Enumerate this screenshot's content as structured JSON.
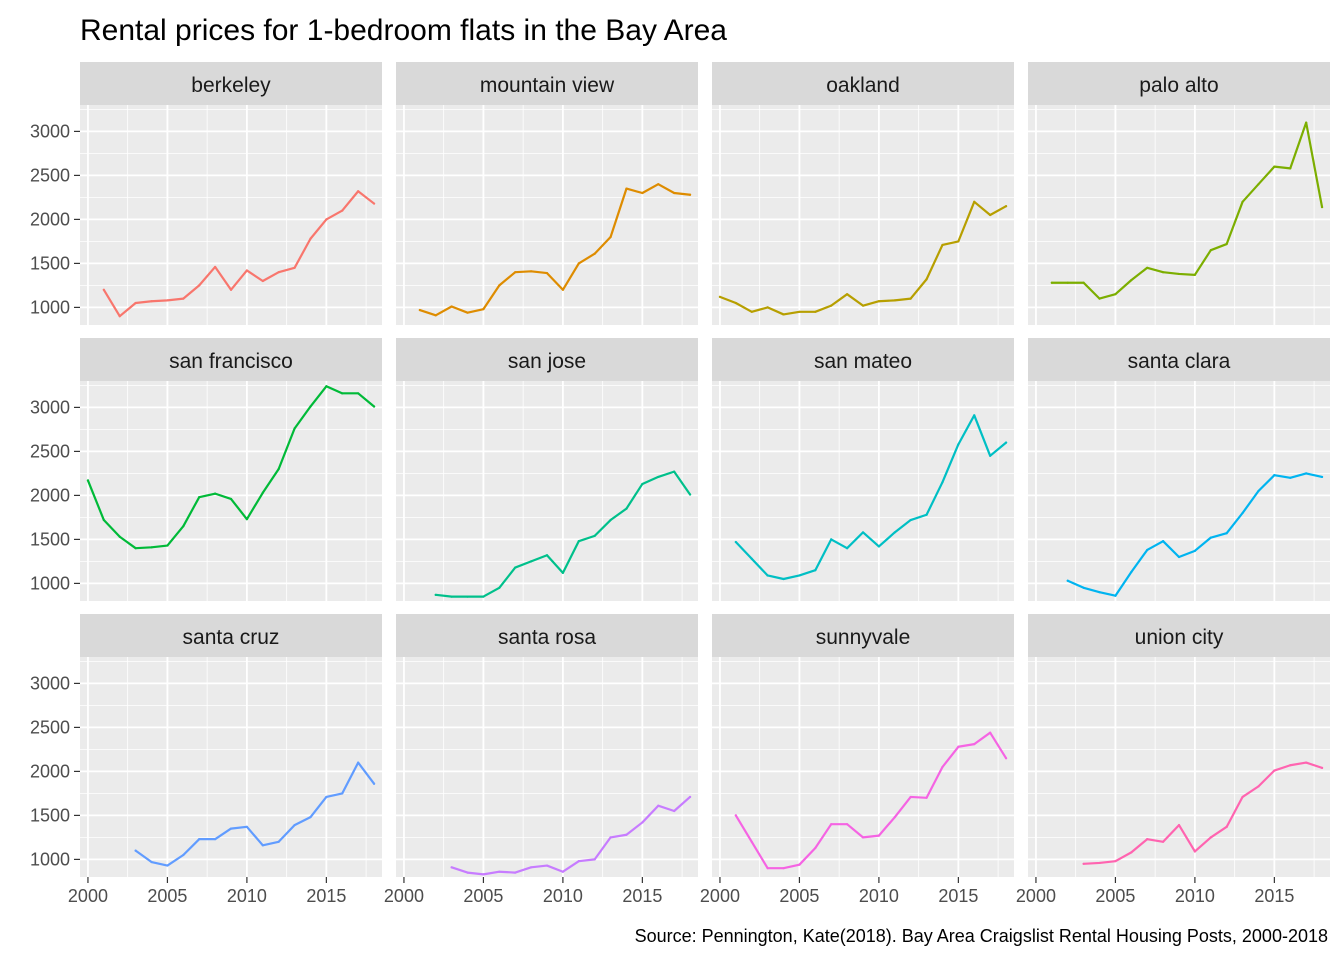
{
  "chart_data": {
    "type": "line",
    "title": "Rental prices for 1-bedroom flats in the Bay Area",
    "caption": "Source: Pennington, Kate(2018). Bay Area Craigslist Rental Housing Posts, 2000-2018",
    "xlabel": "",
    "ylabel": "",
    "xlim": [
      1999.5,
      2018.5
    ],
    "ylim": [
      800,
      3300
    ],
    "x_ticks": [
      2000,
      2005,
      2010,
      2015
    ],
    "y_ticks": [
      1000,
      1500,
      2000,
      2500,
      3000
    ],
    "grid": true,
    "legend": "none",
    "facets": [
      {
        "name": "berkeley",
        "color": "#F8766D",
        "x": [
          2001,
          2002,
          2003,
          2004,
          2005,
          2006,
          2007,
          2008,
          2009,
          2010,
          2011,
          2012,
          2013,
          2014,
          2015,
          2016,
          2017,
          2018
        ],
        "y": [
          1200,
          900,
          1050,
          1070,
          1080,
          1100,
          1250,
          1460,
          1200,
          1420,
          1300,
          1400,
          1450,
          1780,
          2000,
          2100,
          2320,
          2180
        ]
      },
      {
        "name": "mountain view",
        "color": "#DE8C00",
        "x": [
          2001,
          2002,
          2003,
          2004,
          2005,
          2006,
          2007,
          2008,
          2009,
          2010,
          2011,
          2012,
          2013,
          2014,
          2015,
          2016,
          2017,
          2018
        ],
        "y": [
          970,
          910,
          1010,
          940,
          980,
          1250,
          1400,
          1410,
          1390,
          1200,
          1500,
          1610,
          1800,
          2350,
          2300,
          2400,
          2300,
          2280
        ]
      },
      {
        "name": "oakland",
        "color": "#B79F00",
        "x": [
          2000,
          2001,
          2002,
          2003,
          2004,
          2005,
          2006,
          2007,
          2008,
          2009,
          2010,
          2011,
          2012,
          2013,
          2014,
          2015,
          2016,
          2017,
          2018
        ],
        "y": [
          1120,
          1050,
          950,
          1000,
          920,
          950,
          950,
          1020,
          1150,
          1020,
          1070,
          1080,
          1100,
          1320,
          1710,
          1750,
          2200,
          2050,
          2150
        ]
      },
      {
        "name": "palo alto",
        "color": "#7CAE00",
        "x": [
          2001,
          2002,
          2003,
          2004,
          2005,
          2006,
          2007,
          2008,
          2009,
          2010,
          2011,
          2012,
          2013,
          2014,
          2015,
          2016,
          2017,
          2018
        ],
        "y": [
          1280,
          1280,
          1280,
          1100,
          1150,
          1310,
          1450,
          1400,
          1380,
          1370,
          1650,
          1720,
          2200,
          2400,
          2600,
          2580,
          3100,
          2140
        ]
      },
      {
        "name": "san francisco",
        "color": "#00BA38",
        "x": [
          2000,
          2001,
          2002,
          2003,
          2004,
          2005,
          2006,
          2007,
          2008,
          2009,
          2010,
          2011,
          2012,
          2013,
          2014,
          2015,
          2016,
          2017,
          2018
        ],
        "y": [
          2170,
          1720,
          1530,
          1400,
          1410,
          1430,
          1650,
          1980,
          2020,
          1960,
          1730,
          2030,
          2300,
          2760,
          3010,
          3240,
          3160,
          3160,
          3010
        ]
      },
      {
        "name": "san jose",
        "color": "#00C08B",
        "x": [
          2002,
          2003,
          2004,
          2005,
          2006,
          2007,
          2008,
          2009,
          2010,
          2011,
          2012,
          2013,
          2014,
          2015,
          2016,
          2017,
          2018
        ],
        "y": [
          870,
          850,
          850,
          850,
          950,
          1180,
          1250,
          1320,
          1120,
          1480,
          1540,
          1720,
          1850,
          2130,
          2210,
          2270,
          2010
        ]
      },
      {
        "name": "san mateo",
        "color": "#00BFC4",
        "x": [
          2001,
          2002,
          2003,
          2004,
          2005,
          2006,
          2007,
          2008,
          2009,
          2010,
          2011,
          2012,
          2013,
          2014,
          2015,
          2016,
          2017,
          2018
        ],
        "y": [
          1470,
          1280,
          1090,
          1050,
          1090,
          1150,
          1500,
          1400,
          1580,
          1420,
          1580,
          1720,
          1780,
          2150,
          2580,
          2910,
          2450,
          2600
        ]
      },
      {
        "name": "santa clara",
        "color": "#00B4F0",
        "x": [
          2002,
          2003,
          2004,
          2005,
          2006,
          2007,
          2008,
          2009,
          2010,
          2011,
          2012,
          2013,
          2014,
          2015,
          2016,
          2017,
          2018
        ],
        "y": [
          1030,
          950,
          900,
          860,
          1130,
          1380,
          1480,
          1300,
          1370,
          1520,
          1570,
          1800,
          2050,
          2230,
          2200,
          2250,
          2210
        ]
      },
      {
        "name": "santa cruz",
        "color": "#619CFF",
        "x": [
          2003,
          2004,
          2005,
          2006,
          2007,
          2008,
          2009,
          2010,
          2011,
          2012,
          2013,
          2014,
          2015,
          2016,
          2017,
          2018
        ],
        "y": [
          1100,
          970,
          930,
          1050,
          1230,
          1230,
          1350,
          1370,
          1160,
          1200,
          1390,
          1480,
          1710,
          1750,
          2100,
          1860
        ]
      },
      {
        "name": "santa rosa",
        "color": "#C77CFF",
        "x": [
          2003,
          2004,
          2005,
          2006,
          2007,
          2008,
          2009,
          2010,
          2011,
          2012,
          2013,
          2014,
          2015,
          2016,
          2017,
          2018
        ],
        "y": [
          910,
          850,
          830,
          860,
          850,
          910,
          930,
          860,
          980,
          1000,
          1250,
          1280,
          1420,
          1610,
          1550,
          1710
        ]
      },
      {
        "name": "sunnyvale",
        "color": "#F564E3",
        "x": [
          2001,
          2002,
          2003,
          2004,
          2005,
          2006,
          2007,
          2008,
          2009,
          2010,
          2011,
          2012,
          2013,
          2014,
          2015,
          2016,
          2017,
          2018
        ],
        "y": [
          1500,
          1200,
          900,
          900,
          940,
          1130,
          1400,
          1400,
          1250,
          1270,
          1480,
          1710,
          1700,
          2050,
          2280,
          2310,
          2440,
          2150
        ]
      },
      {
        "name": "union city",
        "color": "#FF64B0",
        "x": [
          2003,
          2004,
          2005,
          2006,
          2007,
          2008,
          2009,
          2010,
          2011,
          2012,
          2013,
          2014,
          2015,
          2016,
          2017,
          2018
        ],
        "y": [
          950,
          960,
          980,
          1080,
          1230,
          1200,
          1390,
          1090,
          1250,
          1370,
          1710,
          1830,
          2010,
          2070,
          2100,
          2040
        ]
      }
    ]
  }
}
